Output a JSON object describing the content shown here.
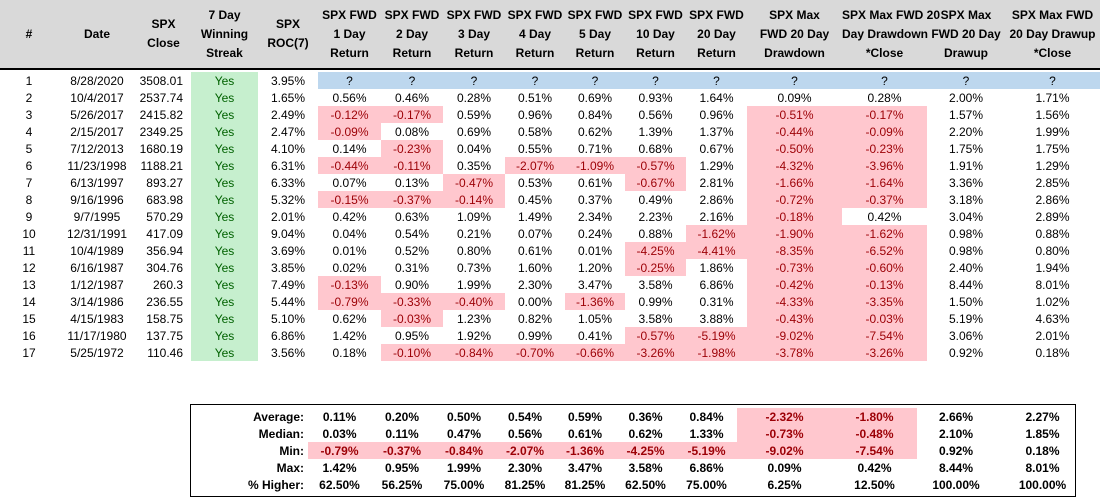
{
  "headers": [
    "#",
    "Date",
    "SPX\nClose",
    "7 Day\nWinning\nStreak",
    "SPX\nROC(7)",
    "SPX FWD\n1 Day\nReturn",
    "SPX FWD\n2 Day\nReturn",
    "SPX FWD\n3 Day\nReturn",
    "SPX FWD\n4 Day\nReturn",
    "SPX FWD\n5 Day\nReturn",
    "SPX FWD\n10 Day\nReturn",
    "SPX FWD\n20 Day\nReturn",
    "SPX Max\nFWD 20 Day\nDrawdown",
    "SPX Max FWD 20\nDay Drawdown\n*Close",
    "SPX Max\nFWD 20 Day\nDrawup",
    "SPX Max FWD\n20 Day Drawup\n*Close"
  ],
  "rows": [
    [
      "1",
      "8/28/2020",
      "3508.01",
      "Yes",
      "3.95%",
      "?",
      "?",
      "?",
      "?",
      "?",
      "?",
      "?",
      "?",
      "?",
      "?",
      "?"
    ],
    [
      "2",
      "10/4/2017",
      "2537.74",
      "Yes",
      "1.65%",
      "0.56%",
      "0.46%",
      "0.28%",
      "0.51%",
      "0.69%",
      "0.93%",
      "1.64%",
      "0.09%",
      "0.28%",
      "2.00%",
      "1.71%"
    ],
    [
      "3",
      "5/26/2017",
      "2415.82",
      "Yes",
      "2.49%",
      "-0.12%",
      "-0.17%",
      "0.59%",
      "0.96%",
      "0.84%",
      "0.56%",
      "0.96%",
      "-0.51%",
      "-0.17%",
      "1.57%",
      "1.56%"
    ],
    [
      "4",
      "2/15/2017",
      "2349.25",
      "Yes",
      "2.47%",
      "-0.09%",
      "0.08%",
      "0.69%",
      "0.58%",
      "0.62%",
      "1.39%",
      "1.37%",
      "-0.44%",
      "-0.09%",
      "2.20%",
      "1.99%"
    ],
    [
      "5",
      "7/12/2013",
      "1680.19",
      "Yes",
      "4.10%",
      "0.14%",
      "-0.23%",
      "0.04%",
      "0.55%",
      "0.71%",
      "0.68%",
      "0.67%",
      "-0.50%",
      "-0.23%",
      "1.75%",
      "1.75%"
    ],
    [
      "6",
      "11/23/1998",
      "1188.21",
      "Yes",
      "6.31%",
      "-0.44%",
      "-0.11%",
      "0.35%",
      "-2.07%",
      "-1.09%",
      "-0.57%",
      "1.29%",
      "-4.32%",
      "-3.96%",
      "1.91%",
      "1.29%"
    ],
    [
      "7",
      "6/13/1997",
      "893.27",
      "Yes",
      "6.33%",
      "0.07%",
      "0.13%",
      "-0.47%",
      "0.53%",
      "0.61%",
      "-0.67%",
      "2.81%",
      "-1.66%",
      "-1.64%",
      "3.36%",
      "2.85%"
    ],
    [
      "8",
      "9/16/1996",
      "683.98",
      "Yes",
      "5.32%",
      "-0.15%",
      "-0.37%",
      "-0.14%",
      "0.45%",
      "0.37%",
      "0.49%",
      "2.86%",
      "-0.72%",
      "-0.37%",
      "3.18%",
      "2.86%"
    ],
    [
      "9",
      "9/7/1995",
      "570.29",
      "Yes",
      "2.01%",
      "0.42%",
      "0.63%",
      "1.09%",
      "1.49%",
      "2.34%",
      "2.23%",
      "2.16%",
      "-0.18%",
      "0.42%",
      "3.04%",
      "2.89%"
    ],
    [
      "10",
      "12/31/1991",
      "417.09",
      "Yes",
      "9.04%",
      "0.04%",
      "0.54%",
      "0.21%",
      "0.07%",
      "0.24%",
      "0.88%",
      "-1.62%",
      "-1.90%",
      "-1.62%",
      "0.98%",
      "0.88%"
    ],
    [
      "11",
      "10/4/1989",
      "356.94",
      "Yes",
      "3.69%",
      "0.01%",
      "0.52%",
      "0.80%",
      "0.61%",
      "0.01%",
      "-4.25%",
      "-4.41%",
      "-8.35%",
      "-6.52%",
      "0.98%",
      "0.80%"
    ],
    [
      "12",
      "6/16/1987",
      "304.76",
      "Yes",
      "3.85%",
      "0.02%",
      "0.31%",
      "0.73%",
      "1.60%",
      "1.20%",
      "-0.25%",
      "1.86%",
      "-0.73%",
      "-0.60%",
      "2.40%",
      "1.94%"
    ],
    [
      "13",
      "1/12/1987",
      "260.3",
      "Yes",
      "7.49%",
      "-0.13%",
      "0.90%",
      "1.99%",
      "2.30%",
      "3.47%",
      "3.58%",
      "6.86%",
      "-0.42%",
      "-0.13%",
      "8.44%",
      "8.01%"
    ],
    [
      "14",
      "3/14/1986",
      "236.55",
      "Yes",
      "5.44%",
      "-0.79%",
      "-0.33%",
      "-0.40%",
      "0.00%",
      "-1.36%",
      "0.99%",
      "0.31%",
      "-4.33%",
      "-3.35%",
      "1.50%",
      "1.02%"
    ],
    [
      "15",
      "4/15/1983",
      "158.75",
      "Yes",
      "5.10%",
      "0.62%",
      "-0.03%",
      "1.23%",
      "0.82%",
      "1.05%",
      "3.58%",
      "3.88%",
      "-0.43%",
      "-0.03%",
      "5.19%",
      "4.63%"
    ],
    [
      "16",
      "11/17/1980",
      "137.75",
      "Yes",
      "6.86%",
      "1.42%",
      "0.95%",
      "1.92%",
      "0.99%",
      "0.41%",
      "-0.57%",
      "-5.19%",
      "-9.02%",
      "-7.54%",
      "3.06%",
      "2.01%"
    ],
    [
      "17",
      "5/25/1972",
      "110.46",
      "Yes",
      "3.56%",
      "0.18%",
      "-0.10%",
      "-0.84%",
      "-0.70%",
      "-0.66%",
      "-3.26%",
      "-1.98%",
      "-3.78%",
      "-3.26%",
      "0.92%",
      "0.18%"
    ]
  ],
  "summary": [
    {
      "label": "Average:",
      "values": [
        "0.11%",
        "0.20%",
        "0.50%",
        "0.54%",
        "0.59%",
        "0.36%",
        "0.84%",
        "-2.32%",
        "-1.80%",
        "2.66%",
        "2.27%"
      ]
    },
    {
      "label": "Median:",
      "values": [
        "0.03%",
        "0.11%",
        "0.47%",
        "0.56%",
        "0.61%",
        "0.62%",
        "1.33%",
        "-0.73%",
        "-0.48%",
        "2.10%",
        "1.85%"
      ]
    },
    {
      "label": "Min:",
      "values": [
        "-0.79%",
        "-0.37%",
        "-0.84%",
        "-2.07%",
        "-1.36%",
        "-4.25%",
        "-5.19%",
        "-9.02%",
        "-7.54%",
        "0.92%",
        "0.18%"
      ]
    },
    {
      "label": "Max:",
      "values": [
        "1.42%",
        "0.95%",
        "1.99%",
        "2.30%",
        "3.47%",
        "3.58%",
        "6.86%",
        "0.09%",
        "0.42%",
        "8.44%",
        "8.01%"
      ]
    },
    {
      "label": "% Higher:",
      "values": [
        "62.50%",
        "56.25%",
        "75.00%",
        "81.25%",
        "81.25%",
        "62.50%",
        "75.00%",
        "6.25%",
        "12.50%",
        "100.00%",
        "100.00%"
      ]
    }
  ],
  "colors": {
    "header_bg": "#d9d9d9",
    "yes_bg": "#c6efce",
    "negative_bg": "#ffc7ce",
    "unknown_bg": "#bdd7ee"
  }
}
